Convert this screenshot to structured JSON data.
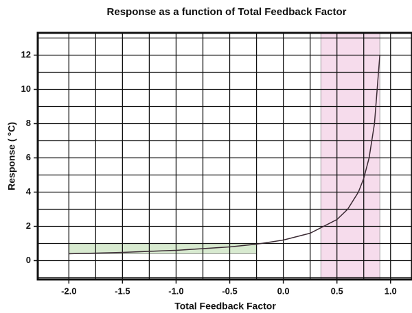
{
  "chart_data": {
    "type": "line",
    "title": "Response as a function of Total Feedback Factor",
    "x_label": "Total Feedback Factor",
    "y_label": "Response ( °C)",
    "x": [
      -2.0,
      -1.5,
      -1.0,
      -0.5,
      -0.25,
      0.0,
      0.25,
      0.5,
      0.6,
      0.7,
      0.75,
      0.8,
      0.85,
      0.9
    ],
    "series": [
      {
        "color": "#3a2a33",
        "values": [
          0.4,
          0.48,
          0.6,
          0.8,
          0.96,
          1.2,
          1.6,
          2.4,
          3.0,
          4.0,
          4.8,
          6.0,
          8.0,
          12.0
        ]
      }
    ],
    "xlim": [
      -2.29,
      1.2
    ],
    "ylim": [
      -1.1,
      13.3
    ],
    "xticks": [
      {
        "value": -2.0,
        "label": "-2.0"
      },
      -1.5,
      {
        "value": -1.0,
        "label": "-1.0"
      },
      -0.5,
      {
        "value": 0.0,
        "label": "0.0"
      },
      0.5,
      {
        "value": 1.0,
        "label": "1.0"
      }
    ],
    "yticks": [
      0,
      2,
      4,
      6,
      8,
      10,
      12
    ],
    "xgrid": [
      -2.0,
      -1.75,
      -1.5,
      -1.25,
      -1.0,
      -0.75,
      -0.5,
      -0.25,
      0.0,
      0.25,
      0.5,
      0.75,
      1.0
    ],
    "ygrid": [
      -1,
      0,
      1,
      2,
      3,
      4,
      5,
      6,
      7,
      8,
      9,
      10,
      11,
      12,
      13
    ],
    "shaded_regions": [
      {
        "x": [
          -2.0,
          -0.25
        ],
        "y": [
          0.4,
          1.0
        ],
        "color": "#d8ead0"
      },
      {
        "x": [
          0.35,
          0.9
        ],
        "y": [
          -1.1,
          13.3
        ],
        "color": "#f6dcec"
      }
    ]
  }
}
